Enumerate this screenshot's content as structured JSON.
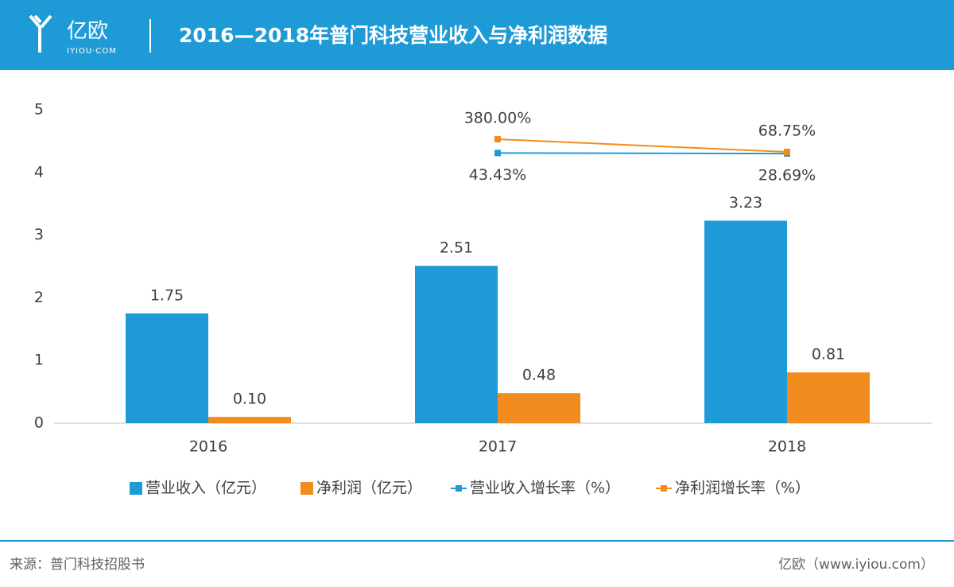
{
  "header": {
    "logo": "亿欧",
    "logo_sub": "IYIOU·COM"
  },
  "chart_data": {
    "type": "bar",
    "title": "2016—2018年普门科技营业收入与净利润数据",
    "categories": [
      "2016",
      "2017",
      "2018"
    ],
    "ylim": [
      0,
      5
    ],
    "yticks": [
      0,
      1,
      2,
      3,
      4,
      5
    ],
    "grid": false,
    "y2lim": [
      -6560,
      1100
    ],
    "series": [
      {
        "name": "营业收入（亿元）",
        "type": "bar",
        "color": "#1e9bd7",
        "values": [
          1.75,
          2.51,
          3.23
        ],
        "value_labels": [
          "1.75",
          "2.51",
          "3.23"
        ]
      },
      {
        "name": "净利润（亿元）",
        "type": "bar",
        "color": "#f28c1e",
        "values": [
          0.1,
          0.48,
          0.81
        ],
        "value_labels": [
          "0.10",
          "0.48",
          "0.81"
        ]
      },
      {
        "name": "营业收入增长率（%）",
        "type": "line",
        "axis": "y2",
        "color": "#1e9bd7",
        "values": [
          null,
          43.43,
          28.69
        ],
        "value_labels": [
          null,
          "43.43%",
          "28.69%"
        ]
      },
      {
        "name": "净利润增长率（%）",
        "type": "line",
        "axis": "y2",
        "color": "#f28c1e",
        "values": [
          null,
          380,
          68.75
        ],
        "value_labels": [
          null,
          "380.00%",
          "68.75%"
        ]
      }
    ]
  },
  "footer": {
    "source": "来源：普门科技招股书",
    "brand": "亿欧（www.iyiou.com）"
  }
}
